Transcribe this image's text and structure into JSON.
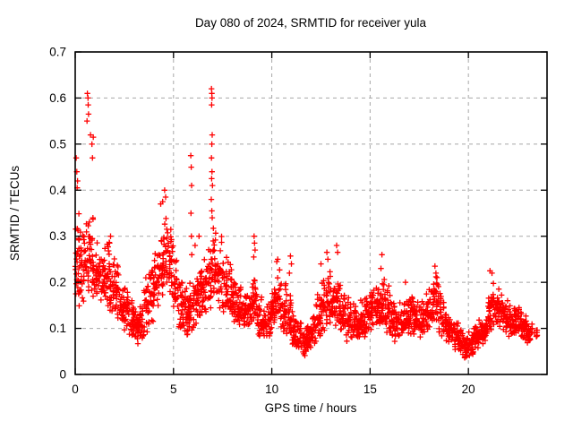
{
  "window": {
    "background": "#ffffff"
  },
  "chart_data": {
    "type": "scatter",
    "title": "Day 080 of 2024, SRMTID for receiver yula",
    "xlabel": "GPS time / hours",
    "ylabel": "SRMTID / TECUs",
    "xlim": [
      0,
      24
    ],
    "ylim": [
      0,
      0.7
    ],
    "xticks": [
      {
        "v": 0,
        "label": "0"
      },
      {
        "v": 5,
        "label": "5"
      },
      {
        "v": 10,
        "label": "10"
      },
      {
        "v": 15,
        "label": "15"
      },
      {
        "v": 20,
        "label": "20"
      }
    ],
    "yticks": [
      {
        "v": 0,
        "label": "0"
      },
      {
        "v": 0.1,
        "label": "0.1"
      },
      {
        "v": 0.2,
        "label": "0.2"
      },
      {
        "v": 0.3,
        "label": "0.3"
      },
      {
        "v": 0.4,
        "label": "0.4"
      },
      {
        "v": 0.5,
        "label": "0.5"
      },
      {
        "v": 0.6,
        "label": "0.6"
      },
      {
        "v": 0.7,
        "label": "0.7"
      }
    ],
    "grid": {
      "show": true,
      "style": "dashed",
      "color": "#a8a8a8",
      "dash": "4,4"
    },
    "marker": {
      "shape": "plus",
      "color": "#ff0000",
      "size": 7,
      "stroke_width": 1.3
    },
    "axis_color": "#000000",
    "legend": {
      "show": false
    },
    "seed": 80,
    "bin_width_hours": 0.25,
    "points_per_bin": 25,
    "density_bins": [
      [
        0.0,
        0.14,
        0.36,
        30
      ],
      [
        0.25,
        0.15,
        0.34
      ],
      [
        0.5,
        0.17,
        0.38
      ],
      [
        0.75,
        0.16,
        0.36
      ],
      [
        1.0,
        0.15,
        0.3
      ],
      [
        1.25,
        0.14,
        0.28
      ],
      [
        1.5,
        0.14,
        0.3
      ],
      [
        1.75,
        0.13,
        0.27
      ],
      [
        2.0,
        0.11,
        0.25
      ],
      [
        2.25,
        0.1,
        0.22
      ],
      [
        2.5,
        0.09,
        0.2
      ],
      [
        2.75,
        0.07,
        0.17
      ],
      [
        3.0,
        0.065,
        0.15
      ],
      [
        3.25,
        0.07,
        0.16
      ],
      [
        3.5,
        0.09,
        0.22
      ],
      [
        3.75,
        0.11,
        0.26
      ],
      [
        4.0,
        0.14,
        0.3
      ],
      [
        4.25,
        0.16,
        0.33
      ],
      [
        4.5,
        0.18,
        0.35
      ],
      [
        4.75,
        0.17,
        0.33
      ],
      [
        5.0,
        0.13,
        0.27
      ],
      [
        5.25,
        0.1,
        0.22
      ],
      [
        5.5,
        0.08,
        0.2
      ],
      [
        5.75,
        0.08,
        0.2
      ],
      [
        6.0,
        0.1,
        0.22
      ],
      [
        6.25,
        0.11,
        0.23
      ],
      [
        6.5,
        0.12,
        0.25
      ],
      [
        6.75,
        0.14,
        0.3
      ],
      [
        7.0,
        0.15,
        0.33
      ],
      [
        7.25,
        0.14,
        0.3
      ],
      [
        7.5,
        0.13,
        0.27
      ],
      [
        7.75,
        0.12,
        0.25
      ],
      [
        8.0,
        0.11,
        0.22
      ],
      [
        8.25,
        0.1,
        0.2
      ],
      [
        8.5,
        0.1,
        0.2
      ],
      [
        8.75,
        0.1,
        0.21
      ],
      [
        9.0,
        0.11,
        0.22
      ],
      [
        9.25,
        0.08,
        0.17
      ],
      [
        9.5,
        0.07,
        0.15
      ],
      [
        9.75,
        0.08,
        0.17
      ],
      [
        10.0,
        0.1,
        0.2
      ],
      [
        10.25,
        0.1,
        0.23
      ],
      [
        10.5,
        0.09,
        0.2
      ],
      [
        10.75,
        0.08,
        0.18
      ],
      [
        11.0,
        0.06,
        0.14
      ],
      [
        11.25,
        0.05,
        0.12
      ],
      [
        11.5,
        0.035,
        0.1
      ],
      [
        11.75,
        0.05,
        0.12
      ],
      [
        12.0,
        0.06,
        0.14
      ],
      [
        12.25,
        0.08,
        0.18
      ],
      [
        12.5,
        0.09,
        0.21
      ],
      [
        12.75,
        0.1,
        0.23
      ],
      [
        13.0,
        0.1,
        0.22
      ],
      [
        13.25,
        0.1,
        0.23
      ],
      [
        13.5,
        0.08,
        0.19
      ],
      [
        13.75,
        0.07,
        0.17
      ],
      [
        14.0,
        0.07,
        0.16
      ],
      [
        14.25,
        0.07,
        0.16
      ],
      [
        14.5,
        0.08,
        0.17
      ],
      [
        14.75,
        0.08,
        0.18
      ],
      [
        15.0,
        0.09,
        0.2
      ],
      [
        15.25,
        0.09,
        0.2
      ],
      [
        15.5,
        0.1,
        0.21
      ],
      [
        15.75,
        0.09,
        0.2
      ],
      [
        16.0,
        0.08,
        0.18
      ],
      [
        16.25,
        0.07,
        0.16
      ],
      [
        16.5,
        0.07,
        0.16
      ],
      [
        16.75,
        0.08,
        0.18
      ],
      [
        17.0,
        0.08,
        0.18
      ],
      [
        17.25,
        0.08,
        0.17
      ],
      [
        17.5,
        0.08,
        0.18
      ],
      [
        17.75,
        0.09,
        0.19
      ],
      [
        18.0,
        0.1,
        0.21
      ],
      [
        18.25,
        0.1,
        0.22
      ],
      [
        18.5,
        0.08,
        0.18
      ],
      [
        18.75,
        0.07,
        0.15
      ],
      [
        19.0,
        0.06,
        0.13
      ],
      [
        19.25,
        0.05,
        0.12
      ],
      [
        19.5,
        0.04,
        0.11
      ],
      [
        19.75,
        0.03,
        0.09
      ],
      [
        20.0,
        0.035,
        0.1
      ],
      [
        20.25,
        0.05,
        0.11
      ],
      [
        20.5,
        0.06,
        0.12
      ],
      [
        20.75,
        0.07,
        0.13
      ],
      [
        21.0,
        0.09,
        0.18
      ],
      [
        21.25,
        0.1,
        0.2
      ],
      [
        21.5,
        0.1,
        0.19
      ],
      [
        21.75,
        0.09,
        0.17
      ],
      [
        22.0,
        0.08,
        0.16
      ],
      [
        22.25,
        0.07,
        0.15
      ],
      [
        22.5,
        0.08,
        0.15
      ],
      [
        22.75,
        0.07,
        0.14
      ],
      [
        23.0,
        0.06,
        0.13,
        18
      ],
      [
        23.25,
        0.07,
        0.12,
        8
      ]
    ],
    "outliers": [
      [
        0.05,
        0.47
      ],
      [
        0.08,
        0.44
      ],
      [
        0.12,
        0.42
      ],
      [
        0.1,
        0.405
      ],
      [
        0.62,
        0.61
      ],
      [
        0.65,
        0.6
      ],
      [
        0.66,
        0.585
      ],
      [
        0.68,
        0.565
      ],
      [
        0.6,
        0.55
      ],
      [
        0.78,
        0.52
      ],
      [
        0.92,
        0.515
      ],
      [
        0.85,
        0.5
      ],
      [
        0.88,
        0.47
      ],
      [
        1.8,
        0.3
      ],
      [
        1.75,
        0.285
      ],
      [
        4.35,
        0.37
      ],
      [
        4.45,
        0.375
      ],
      [
        4.55,
        0.4
      ],
      [
        4.6,
        0.385
      ],
      [
        5.88,
        0.475
      ],
      [
        5.9,
        0.45
      ],
      [
        5.92,
        0.41
      ],
      [
        5.89,
        0.35
      ],
      [
        5.91,
        0.3
      ],
      [
        5.93,
        0.26
      ],
      [
        6.1,
        0.28
      ],
      [
        6.3,
        0.3
      ],
      [
        6.93,
        0.62
      ],
      [
        6.95,
        0.61
      ],
      [
        6.96,
        0.6
      ],
      [
        6.94,
        0.585
      ],
      [
        6.97,
        0.52
      ],
      [
        6.95,
        0.5
      ],
      [
        6.93,
        0.47
      ],
      [
        6.96,
        0.44
      ],
      [
        6.94,
        0.425
      ],
      [
        6.98,
        0.41
      ],
      [
        6.92,
        0.38
      ],
      [
        6.95,
        0.355
      ],
      [
        6.97,
        0.34
      ],
      [
        9.08,
        0.255
      ],
      [
        9.1,
        0.3
      ],
      [
        9.12,
        0.285
      ],
      [
        9.15,
        0.27
      ],
      [
        10.25,
        0.245
      ],
      [
        10.3,
        0.25
      ],
      [
        10.9,
        0.22
      ],
      [
        10.95,
        0.257
      ],
      [
        11.0,
        0.24
      ],
      [
        12.5,
        0.24
      ],
      [
        12.8,
        0.265
      ],
      [
        12.85,
        0.25
      ],
      [
        13.3,
        0.28
      ],
      [
        13.35,
        0.265
      ],
      [
        15.55,
        0.23
      ],
      [
        15.6,
        0.26
      ],
      [
        16.8,
        0.2
      ],
      [
        18.3,
        0.235
      ],
      [
        18.35,
        0.22
      ],
      [
        21.1,
        0.225
      ],
      [
        21.2,
        0.22
      ]
    ]
  }
}
